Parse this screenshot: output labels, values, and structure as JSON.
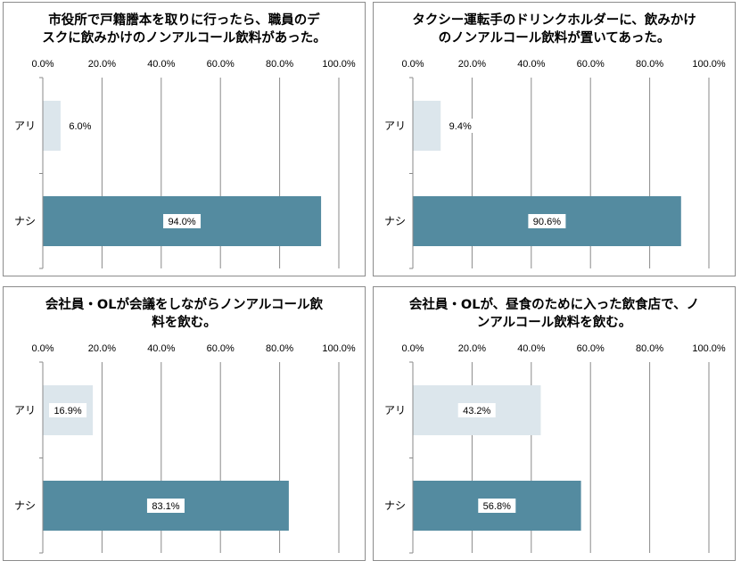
{
  "chart_data": [
    {
      "type": "bar",
      "orientation": "horizontal",
      "title_lines": [
        "市役所で戸籍謄本を取りに行ったら、職員のデ",
        "スクに飲みかけのノンアルコール飲料があった。"
      ],
      "categories": [
        "アリ",
        "ナシ"
      ],
      "values": [
        6.0,
        94.0
      ],
      "value_labels": [
        "6.0%",
        "94.0%"
      ],
      "ticks": [
        "0.0%",
        "20.0%",
        "40.0%",
        "60.0%",
        "80.0%",
        "100.0%"
      ],
      "xlim": [
        0,
        100
      ],
      "grid": true,
      "axis_position": "top",
      "colors": [
        "#dce6ec",
        "#548ba0"
      ]
    },
    {
      "type": "bar",
      "orientation": "horizontal",
      "title_lines": [
        "タクシー運転手のドリンクホルダーに、飲みかけ",
        "のノンアルコール飲料が置いてあった。"
      ],
      "categories": [
        "アリ",
        "ナシ"
      ],
      "values": [
        9.4,
        90.6
      ],
      "value_labels": [
        "9.4%",
        "90.6%"
      ],
      "ticks": [
        "0.0%",
        "20.0%",
        "40.0%",
        "60.0%",
        "80.0%",
        "100.0%"
      ],
      "xlim": [
        0,
        100
      ],
      "grid": true,
      "axis_position": "top",
      "colors": [
        "#dce6ec",
        "#548ba0"
      ]
    },
    {
      "type": "bar",
      "orientation": "horizontal",
      "title_lines": [
        "会社員・OLが会議をしながらノンアルコール飲",
        "料を飲む。"
      ],
      "categories": [
        "アリ",
        "ナシ"
      ],
      "values": [
        16.9,
        83.1
      ],
      "value_labels": [
        "16.9%",
        "83.1%"
      ],
      "ticks": [
        "0.0%",
        "20.0%",
        "40.0%",
        "60.0%",
        "80.0%",
        "100.0%"
      ],
      "xlim": [
        0,
        100
      ],
      "grid": true,
      "axis_position": "top",
      "colors": [
        "#dce6ec",
        "#548ba0"
      ]
    },
    {
      "type": "bar",
      "orientation": "horizontal",
      "title_lines": [
        "会社員・OLが、昼食のために入った飲食店で、ノ",
        "ンアルコール飲料を飲む。"
      ],
      "categories": [
        "アリ",
        "ナシ"
      ],
      "values": [
        43.2,
        56.8
      ],
      "value_labels": [
        "43.2%",
        "56.8%"
      ],
      "ticks": [
        "0.0%",
        "20.0%",
        "40.0%",
        "60.0%",
        "80.0%",
        "100.0%"
      ],
      "xlim": [
        0,
        100
      ],
      "grid": true,
      "axis_position": "top",
      "colors": [
        "#dce6ec",
        "#548ba0"
      ]
    }
  ]
}
